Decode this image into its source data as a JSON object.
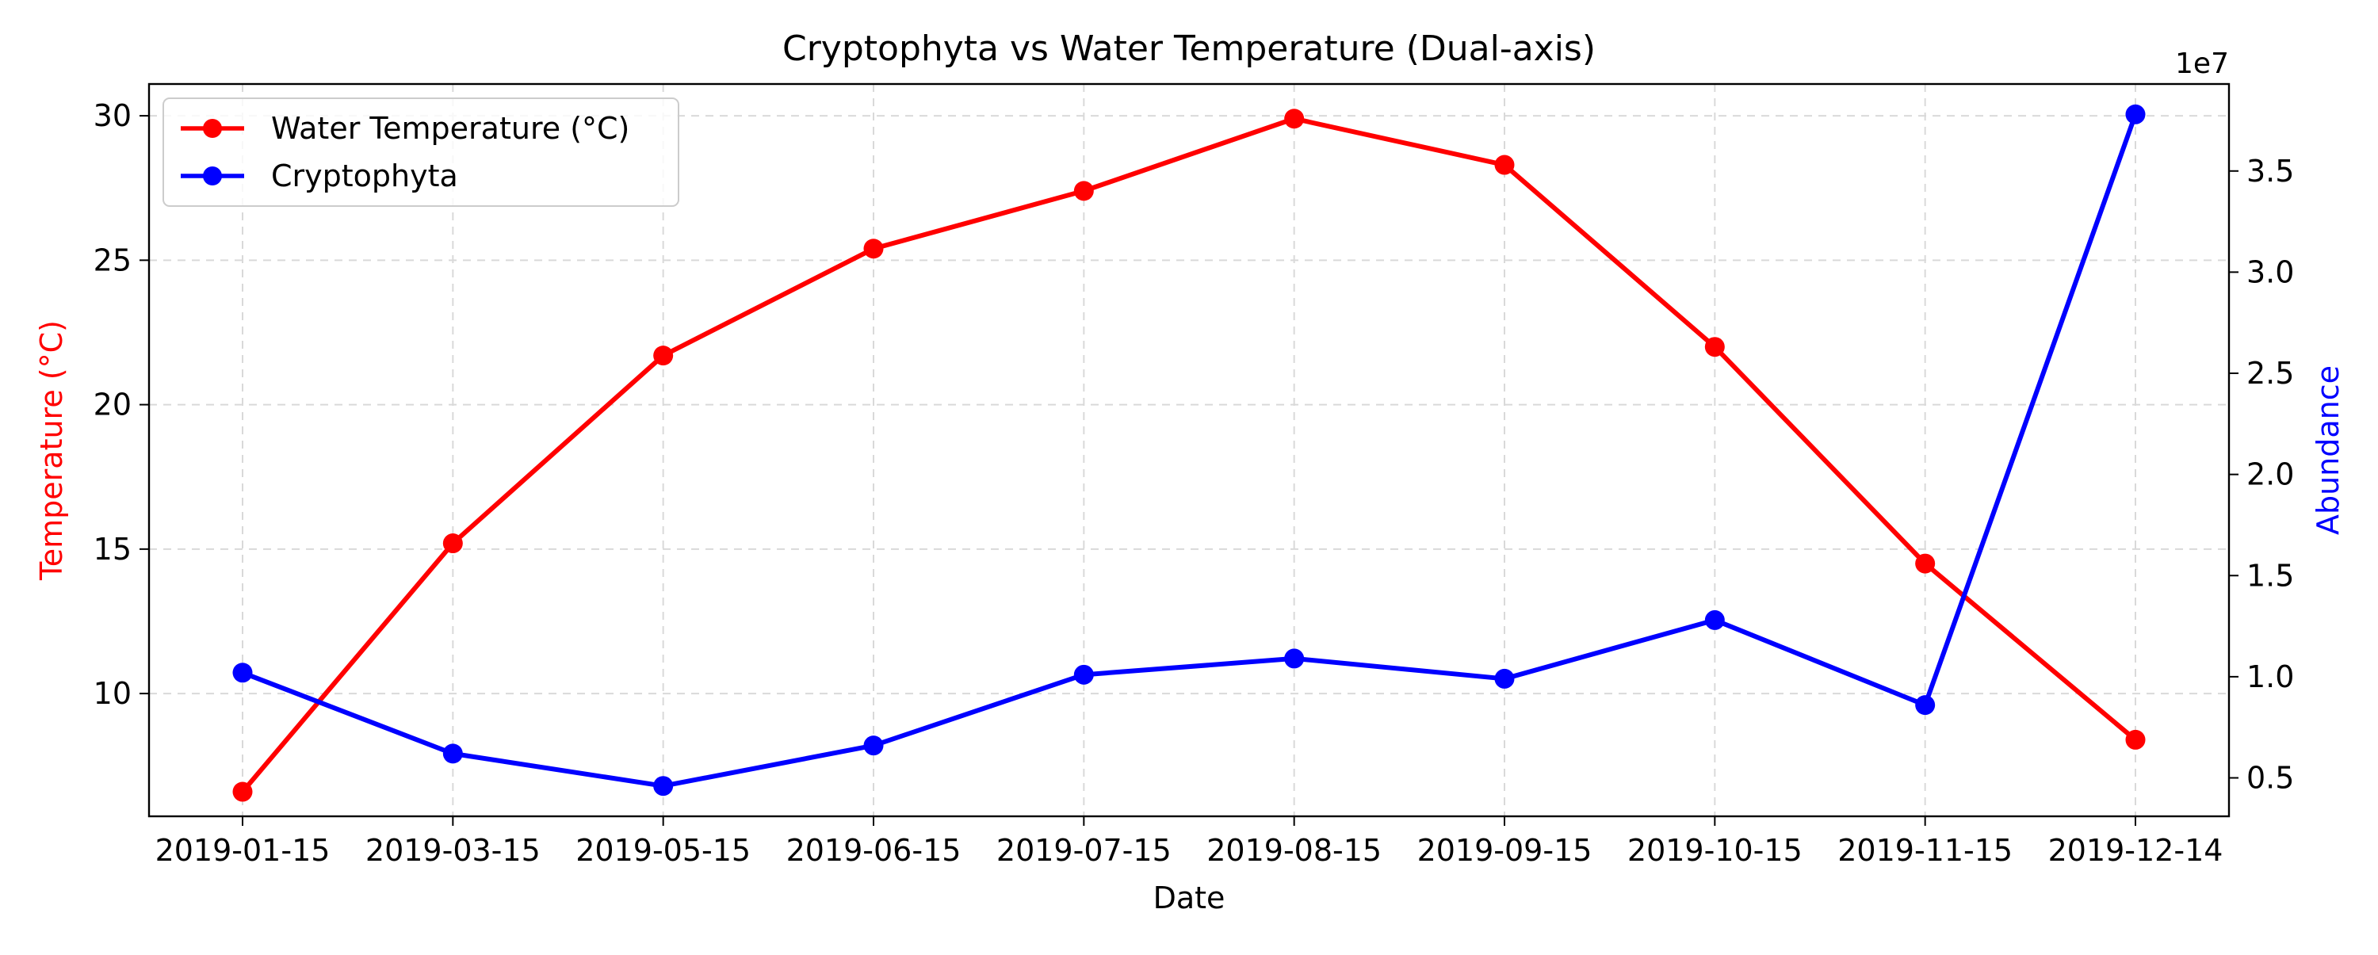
{
  "chart_data": {
    "type": "line",
    "title": "Cryptophyta vs Water Temperature (Dual-axis)",
    "xlabel": "Date",
    "ylabel_left": "Temperature (°C)",
    "ylabel_right": "Abundance",
    "right_axis_multiplier_label": "1e7",
    "categories": [
      "2019-01-15",
      "2019-03-15",
      "2019-05-15",
      "2019-06-15",
      "2019-07-15",
      "2019-08-15",
      "2019-09-15",
      "2019-10-15",
      "2019-11-15",
      "2019-12-14"
    ],
    "series": [
      {
        "name": "Water Temperature (°C)",
        "axis": "left",
        "color": "#ff0000",
        "values": [
          6.6,
          15.2,
          21.7,
          25.4,
          27.4,
          29.9,
          28.3,
          22.0,
          14.5,
          8.4
        ]
      },
      {
        "name": "Cryptophyta",
        "axis": "right",
        "color": "#0000ff",
        "values": [
          10200000,
          6200000,
          4600000,
          6600000,
          10100000,
          10900000,
          9900000,
          12800000,
          8600000,
          37800000
        ]
      }
    ],
    "ylim_left": [
      5.75,
      31.1
    ],
    "yticks_left": [
      10,
      15,
      20,
      25,
      30
    ],
    "yticks_left_labels": [
      "10",
      "15",
      "20",
      "25",
      "30"
    ],
    "ylim_right": [
      3100000,
      39300000
    ],
    "yticks_right": [
      5000000,
      10000000,
      15000000,
      20000000,
      25000000,
      30000000,
      35000000
    ],
    "yticks_right_labels": [
      "0.5",
      "1.0",
      "1.5",
      "2.0",
      "2.5",
      "3.0",
      "3.5"
    ],
    "grid": true,
    "legend_position": "upper-left"
  }
}
